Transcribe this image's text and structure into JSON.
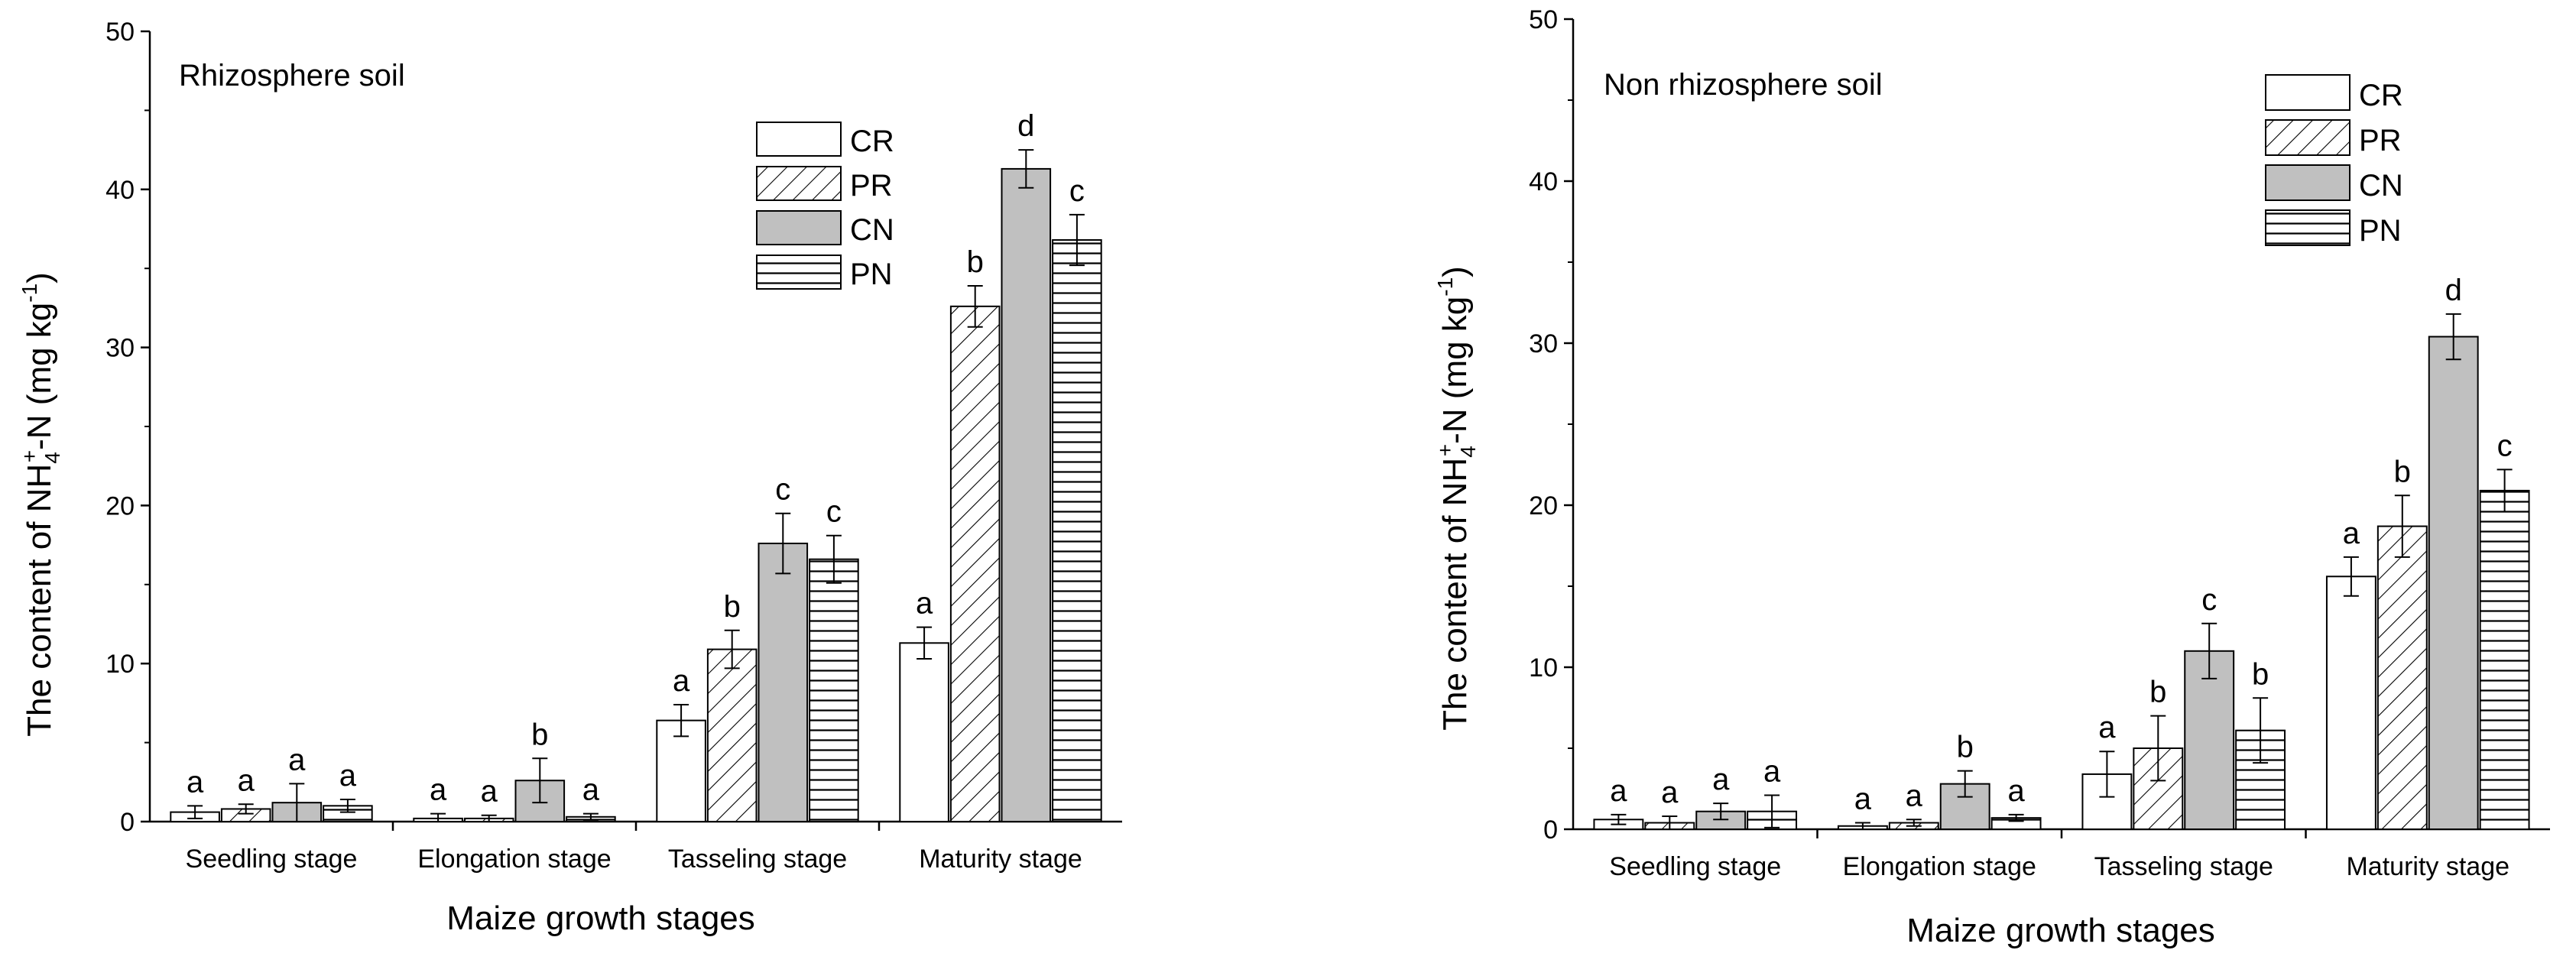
{
  "chart_data": [
    {
      "type": "bar",
      "title": "Rhizosphere soil",
      "xlabel": "Maize growth stages",
      "ylabel": {
        "pre": "The content of NH",
        "sub": "4",
        "sup": "+",
        "mid": "-N (mg kg",
        "sup2": "-1",
        "post": ")"
      },
      "ylim": [
        0,
        50
      ],
      "yticks": [
        "0",
        "10",
        "20",
        "30",
        "40",
        "50"
      ],
      "categories": [
        "Seedling stage",
        "Elongation stage",
        "Tasseling stage",
        "Maturity stage"
      ],
      "legend": [
        "CR",
        "PR",
        "CN",
        "PN"
      ],
      "legend_position": "top-right",
      "series": [
        {
          "name": "CR",
          "values": [
            0.6,
            0.2,
            6.4,
            11.3
          ],
          "errors": [
            0.4,
            0.3,
            1.0,
            1.0
          ],
          "letters": [
            "a",
            "a",
            "a",
            "a"
          ]
        },
        {
          "name": "PR",
          "values": [
            0.8,
            0.2,
            10.9,
            32.6
          ],
          "errors": [
            0.3,
            0.2,
            1.2,
            1.3
          ],
          "letters": [
            "a",
            "a",
            "b",
            "b"
          ]
        },
        {
          "name": "CN",
          "values": [
            1.2,
            2.6,
            17.6,
            41.3
          ],
          "errors": [
            1.2,
            1.4,
            1.9,
            1.2
          ],
          "letters": [
            "a",
            "b",
            "c",
            "d"
          ]
        },
        {
          "name": "PN",
          "values": [
            1.0,
            0.3,
            16.6,
            36.8
          ],
          "errors": [
            0.4,
            0.2,
            1.5,
            1.6
          ],
          "letters": [
            "a",
            "a",
            "c",
            "c"
          ]
        }
      ]
    },
    {
      "type": "bar",
      "title": "Non rhizosphere soil",
      "xlabel": "Maize growth stages",
      "ylabel": {
        "pre": "The content of NH",
        "sub": "4",
        "sup": "+",
        "mid": "-N (mg kg",
        "sup2": "-1",
        "post": ")"
      },
      "ylim": [
        0,
        50
      ],
      "yticks": [
        "0",
        "10",
        "20",
        "30",
        "40",
        "50"
      ],
      "categories": [
        "Seedling stage",
        "Elongation stage",
        "Tasseling stage",
        "Maturity stage"
      ],
      "legend": [
        "CR",
        "PR",
        "CN",
        "PN"
      ],
      "legend_position": "top-right",
      "series": [
        {
          "name": "CR",
          "values": [
            0.6,
            0.2,
            3.4,
            15.6
          ],
          "errors": [
            0.3,
            0.2,
            1.4,
            1.2
          ],
          "letters": [
            "a",
            "a",
            "a",
            "a"
          ]
        },
        {
          "name": "PR",
          "values": [
            0.4,
            0.4,
            5.0,
            18.7
          ],
          "errors": [
            0.4,
            0.2,
            2.0,
            1.9
          ],
          "letters": [
            "a",
            "a",
            "b",
            "b"
          ]
        },
        {
          "name": "CN",
          "values": [
            1.1,
            2.8,
            11.0,
            30.4
          ],
          "errors": [
            0.5,
            0.8,
            1.7,
            1.4
          ],
          "letters": [
            "a",
            "b",
            "c",
            "d"
          ]
        },
        {
          "name": "PN",
          "values": [
            1.1,
            0.7,
            6.1,
            20.9
          ],
          "errors": [
            1.0,
            0.2,
            2.0,
            1.3
          ],
          "letters": [
            "a",
            "a",
            "b",
            "c"
          ]
        }
      ]
    }
  ]
}
